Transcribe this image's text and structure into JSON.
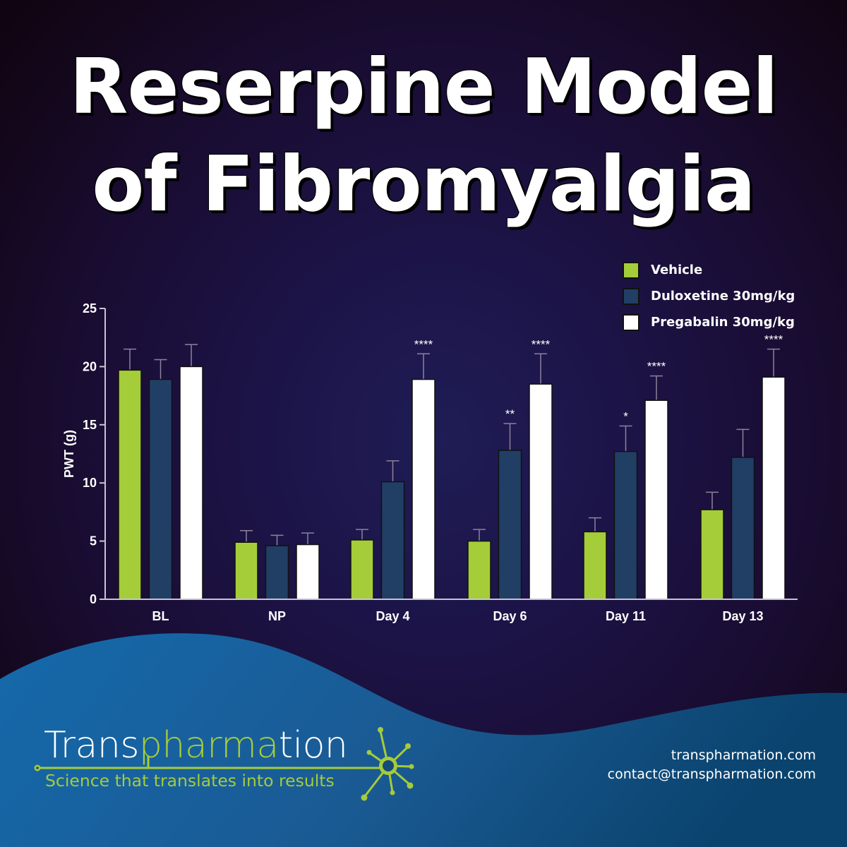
{
  "title": {
    "line1": "Reserpine Model",
    "line2": "of Fibromyalgia"
  },
  "colors": {
    "vehicle": "#a5cd39",
    "duloxetine": "#213f65",
    "pregabalin": "#ffffff",
    "axis": "#c9c3d4",
    "error_bar": "#8d829a",
    "logo_green": "#a4cc3a",
    "wave_left": "#1569ab",
    "wave_right": "#0a446f"
  },
  "legend": {
    "items": [
      {
        "label": "Vehicle",
        "color": "#a5cd39"
      },
      {
        "label": "Duloxetine 30mg/kg",
        "color": "#213f65"
      },
      {
        "label": "Pregabalin 30mg/kg",
        "color": "#ffffff"
      }
    ]
  },
  "chart_data": {
    "type": "bar",
    "title": "Reserpine Model of Fibromyalgia",
    "xlabel": "",
    "ylabel": "PWT (g)",
    "ylim": [
      0,
      25
    ],
    "yticks": [
      0,
      5,
      10,
      15,
      20,
      25
    ],
    "grid": false,
    "legend_position": "top-right",
    "categories": [
      "BL",
      "NP",
      "Day 4",
      "Day 6",
      "Day 11",
      "Day 13"
    ],
    "series": [
      {
        "name": "Vehicle",
        "color": "#a5cd39",
        "values": [
          19.7,
          4.9,
          5.1,
          5.0,
          5.8,
          7.7
        ],
        "error": [
          1.8,
          1.0,
          0.9,
          1.0,
          1.2,
          1.5
        ],
        "significance": [
          "",
          "",
          "",
          "",
          "",
          ""
        ]
      },
      {
        "name": "Duloxetine 30mg/kg",
        "color": "#213f65",
        "values": [
          18.9,
          4.6,
          10.1,
          12.8,
          12.7,
          12.2
        ],
        "error": [
          1.7,
          0.9,
          1.8,
          2.3,
          2.2,
          2.4
        ],
        "significance": [
          "",
          "",
          "",
          "**",
          "*",
          ""
        ]
      },
      {
        "name": "Pregabalin 30mg/kg",
        "color": "#ffffff",
        "values": [
          20.0,
          4.7,
          18.9,
          18.5,
          17.1,
          19.1
        ],
        "error": [
          1.9,
          1.0,
          2.2,
          2.6,
          2.1,
          2.4
        ],
        "significance": [
          "",
          "",
          "****",
          "****",
          "****",
          "****"
        ]
      }
    ]
  },
  "footer": {
    "logo": {
      "part1": "Trans",
      "part2": "pharma",
      "part3": "tion"
    },
    "tagline": "Science that translates into results",
    "website": "transpharmation.com",
    "email": "contact@transpharmation.com"
  }
}
